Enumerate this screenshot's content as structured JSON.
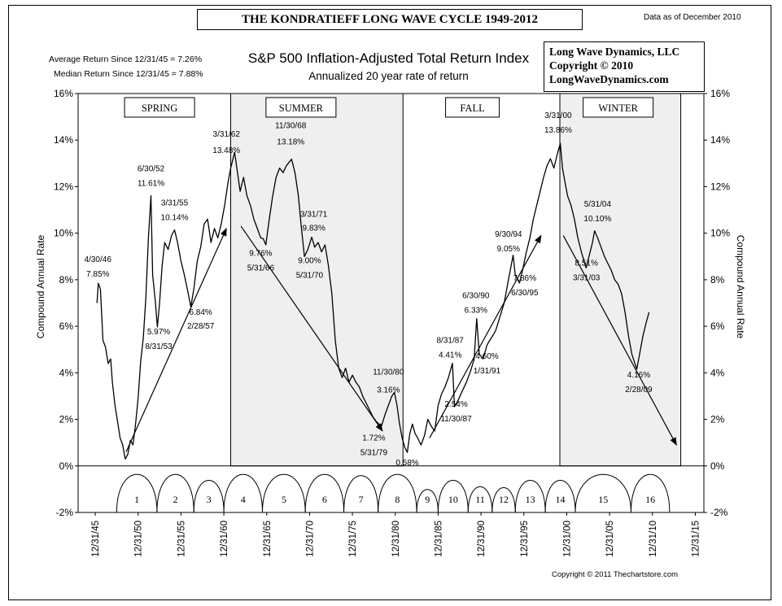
{
  "header": {
    "title": "THE KONDRATIEFF LONG WAVE CYCLE 1949-2012",
    "data_as_of": "Data as of December 2010",
    "average_return": "Average Return Since 12/31/45 = 7.26%",
    "median_return": "Median Return Since 12/31/45 = 7.88%"
  },
  "company_box": {
    "line1": "Long Wave Dynamics, LLC",
    "line2": "Copyright © 2010",
    "line3": "LongWaveDynamics.com"
  },
  "footer": {
    "copyright": "Copyright © 2011 Thechartstore.com"
  },
  "chart_data": {
    "type": "line",
    "title": "S&P 500 Inflation-Adjusted Total Return Index",
    "subtitle": "Annualized 20 year rate of return",
    "ylabel": "Compound Annual Rate",
    "ylabel_right": "Compound Annual Rate",
    "ylim": [
      -2,
      16
    ],
    "xlim": [
      1944,
      2017
    ],
    "y_ticks": [
      -2,
      0,
      2,
      4,
      6,
      8,
      10,
      12,
      14,
      16
    ],
    "y_tick_labels": [
      "-2%",
      "0%",
      "2%",
      "4%",
      "6%",
      "8%",
      "10%",
      "12%",
      "14%",
      "16%"
    ],
    "x_ticks": [
      1946,
      1951,
      1956,
      1961,
      1966,
      1971,
      1976,
      1981,
      1986,
      1991,
      1996,
      2001,
      2006,
      2011,
      2016
    ],
    "x_tick_labels": [
      "12/31/45",
      "12/31/50",
      "12/31/55",
      "12/31/60",
      "12/31/65",
      "12/31/70",
      "12/31/75",
      "12/31/80",
      "12/31/85",
      "12/31/90",
      "12/31/95",
      "12/31/00",
      "12/31/05",
      "12/31/10",
      "12/31/15"
    ],
    "seasons": [
      {
        "name": "SPRING",
        "start": 1944,
        "end": 1961.8,
        "shaded": false,
        "label_x": 1953.5
      },
      {
        "name": "SUMMER",
        "start": 1961.8,
        "end": 1981.9,
        "shaded": true,
        "label_x": 1970
      },
      {
        "name": "FALL",
        "start": 1981.9,
        "end": 2000.2,
        "shaded": false,
        "label_x": 1990
      },
      {
        "name": "WINTER",
        "start": 2000.2,
        "end": 2014.3,
        "shaded": true,
        "label_x": 2007
      }
    ],
    "cycles": [
      {
        "label": "1",
        "start": 1948.5,
        "end": 1953.2
      },
      {
        "label": "2",
        "start": 1953.2,
        "end": 1957.5
      },
      {
        "label": "3",
        "start": 1957.5,
        "end": 1961.0
      },
      {
        "label": "4",
        "start": 1961.0,
        "end": 1965.5
      },
      {
        "label": "5",
        "start": 1965.5,
        "end": 1970.5
      },
      {
        "label": "6",
        "start": 1970.5,
        "end": 1975.0
      },
      {
        "label": "7",
        "start": 1975.0,
        "end": 1979.0
      },
      {
        "label": "8",
        "start": 1979.0,
        "end": 1983.5
      },
      {
        "label": "9",
        "start": 1983.5,
        "end": 1986.0
      },
      {
        "label": "10",
        "start": 1986.0,
        "end": 1989.5
      },
      {
        "label": "11",
        "start": 1989.5,
        "end": 1992.3
      },
      {
        "label": "12",
        "start": 1992.3,
        "end": 1995.0
      },
      {
        "label": "13",
        "start": 1995.0,
        "end": 1998.5
      },
      {
        "label": "14",
        "start": 1998.5,
        "end": 2002.0
      },
      {
        "label": "15",
        "start": 2002.0,
        "end": 2008.5
      },
      {
        "label": "16",
        "start": 2008.5,
        "end": 2013.0
      }
    ],
    "series": [
      {
        "name": "S&P 500 20yr annualized real total return",
        "points": [
          [
            1946.2,
            7.0
          ],
          [
            1946.35,
            7.85
          ],
          [
            1946.6,
            7.6
          ],
          [
            1946.9,
            5.4
          ],
          [
            1947.2,
            5.1
          ],
          [
            1947.5,
            4.4
          ],
          [
            1947.8,
            4.6
          ],
          [
            1948.0,
            3.6
          ],
          [
            1948.3,
            2.6
          ],
          [
            1948.6,
            1.9
          ],
          [
            1948.9,
            1.2
          ],
          [
            1949.2,
            0.9
          ],
          [
            1949.5,
            0.3
          ],
          [
            1949.8,
            0.5
          ],
          [
            1950.1,
            1.1
          ],
          [
            1950.4,
            0.9
          ],
          [
            1950.7,
            1.8
          ],
          [
            1951.0,
            2.9
          ],
          [
            1951.3,
            4.5
          ],
          [
            1951.6,
            5.5
          ],
          [
            1951.9,
            7.2
          ],
          [
            1952.2,
            9.8
          ],
          [
            1952.5,
            11.61
          ],
          [
            1952.7,
            8.2
          ],
          [
            1953.0,
            7.1
          ],
          [
            1953.25,
            5.97
          ],
          [
            1953.5,
            7.0
          ],
          [
            1953.8,
            8.6
          ],
          [
            1954.1,
            9.6
          ],
          [
            1954.5,
            9.3
          ],
          [
            1954.9,
            9.9
          ],
          [
            1955.25,
            10.14
          ],
          [
            1955.6,
            9.6
          ],
          [
            1956.0,
            8.8
          ],
          [
            1956.4,
            8.2
          ],
          [
            1956.8,
            7.5
          ],
          [
            1957.15,
            6.84
          ],
          [
            1957.5,
            7.6
          ],
          [
            1957.9,
            8.8
          ],
          [
            1958.3,
            9.4
          ],
          [
            1958.7,
            10.4
          ],
          [
            1959.1,
            10.6
          ],
          [
            1959.5,
            9.6
          ],
          [
            1959.9,
            10.2
          ],
          [
            1960.3,
            9.8
          ],
          [
            1960.7,
            10.4
          ],
          [
            1961.1,
            11.2
          ],
          [
            1961.5,
            12.2
          ],
          [
            1961.8,
            12.8
          ],
          [
            1962.25,
            13.48
          ],
          [
            1962.6,
            12.6
          ],
          [
            1962.9,
            11.8
          ],
          [
            1963.3,
            12.4
          ],
          [
            1963.7,
            11.6
          ],
          [
            1964.1,
            11.2
          ],
          [
            1964.5,
            10.6
          ],
          [
            1964.9,
            10.2
          ],
          [
            1965.3,
            9.8
          ],
          [
            1965.6,
            9.76
          ],
          [
            1965.9,
            9.5
          ],
          [
            1966.3,
            10.6
          ],
          [
            1966.7,
            11.6
          ],
          [
            1967.1,
            12.4
          ],
          [
            1967.5,
            12.8
          ],
          [
            1967.9,
            12.6
          ],
          [
            1968.3,
            12.9
          ],
          [
            1968.9,
            13.18
          ],
          [
            1969.3,
            12.6
          ],
          [
            1969.7,
            11.6
          ],
          [
            1970.0,
            10.4
          ],
          [
            1970.4,
            9.0
          ],
          [
            1970.8,
            9.3
          ],
          [
            1971.25,
            9.83
          ],
          [
            1971.6,
            9.4
          ],
          [
            1972.0,
            9.6
          ],
          [
            1972.4,
            9.2
          ],
          [
            1972.8,
            9.5
          ],
          [
            1973.2,
            8.6
          ],
          [
            1973.6,
            7.4
          ],
          [
            1974.0,
            5.4
          ],
          [
            1974.4,
            4.2
          ],
          [
            1974.8,
            3.8
          ],
          [
            1975.2,
            4.2
          ],
          [
            1975.6,
            3.6
          ],
          [
            1976.0,
            3.9
          ],
          [
            1976.4,
            3.6
          ],
          [
            1976.8,
            3.4
          ],
          [
            1977.2,
            3.0
          ],
          [
            1977.6,
            2.7
          ],
          [
            1978.0,
            2.4
          ],
          [
            1978.4,
            2.1
          ],
          [
            1978.8,
            1.9
          ],
          [
            1979.1,
            1.8
          ],
          [
            1979.4,
            1.72
          ],
          [
            1979.8,
            2.2
          ],
          [
            1980.2,
            2.6
          ],
          [
            1980.6,
            3.0
          ],
          [
            1980.9,
            3.16
          ],
          [
            1981.2,
            2.6
          ],
          [
            1981.5,
            1.8
          ],
          [
            1981.8,
            1.2
          ],
          [
            1982.1,
            0.8
          ],
          [
            1982.4,
            0.58
          ],
          [
            1982.7,
            1.4
          ],
          [
            1983.0,
            1.8
          ],
          [
            1983.3,
            1.4
          ],
          [
            1983.6,
            1.2
          ],
          [
            1984.0,
            0.9
          ],
          [
            1984.4,
            1.3
          ],
          [
            1984.8,
            2.0
          ],
          [
            1985.2,
            1.7
          ],
          [
            1985.6,
            1.5
          ],
          [
            1986.0,
            2.6
          ],
          [
            1986.4,
            3.1
          ],
          [
            1986.8,
            3.4
          ],
          [
            1987.2,
            3.8
          ],
          [
            1987.67,
            4.41
          ],
          [
            1987.9,
            2.54
          ],
          [
            1988.3,
            2.8
          ],
          [
            1988.8,
            3.2
          ],
          [
            1989.3,
            3.6
          ],
          [
            1989.8,
            4.1
          ],
          [
            1990.2,
            4.6
          ],
          [
            1990.5,
            6.33
          ],
          [
            1990.8,
            4.8
          ],
          [
            1991.25,
            4.6
          ],
          [
            1991.7,
            5.2
          ],
          [
            1992.2,
            5.5
          ],
          [
            1992.7,
            5.8
          ],
          [
            1993.2,
            6.4
          ],
          [
            1993.7,
            7.0
          ],
          [
            1994.2,
            8.0
          ],
          [
            1994.75,
            9.05
          ],
          [
            1995.0,
            8.2
          ],
          [
            1995.5,
            7.86
          ],
          [
            1995.9,
            8.5
          ],
          [
            1996.3,
            9.2
          ],
          [
            1996.7,
            9.8
          ],
          [
            1997.1,
            10.6
          ],
          [
            1997.5,
            11.2
          ],
          [
            1997.9,
            11.8
          ],
          [
            1998.3,
            12.4
          ],
          [
            1998.7,
            12.9
          ],
          [
            1999.1,
            13.2
          ],
          [
            1999.5,
            12.8
          ],
          [
            1999.9,
            13.4
          ],
          [
            2000.25,
            13.86
          ],
          [
            2000.5,
            12.8
          ],
          [
            2000.8,
            12.2
          ],
          [
            2001.1,
            11.6
          ],
          [
            2001.5,
            11.2
          ],
          [
            2001.9,
            10.6
          ],
          [
            2002.3,
            9.8
          ],
          [
            2002.7,
            9.2
          ],
          [
            2003.25,
            8.51
          ],
          [
            2003.6,
            9.0
          ],
          [
            2004.0,
            9.6
          ],
          [
            2004.25,
            10.1
          ],
          [
            2004.6,
            9.8
          ],
          [
            2005.0,
            9.4
          ],
          [
            2005.4,
            9.0
          ],
          [
            2005.8,
            8.7
          ],
          [
            2006.2,
            8.4
          ],
          [
            2006.6,
            8.0
          ],
          [
            2007.0,
            7.8
          ],
          [
            2007.4,
            7.4
          ],
          [
            2007.8,
            6.6
          ],
          [
            2008.2,
            5.6
          ],
          [
            2008.6,
            4.8
          ],
          [
            2009.17,
            4.16
          ],
          [
            2009.5,
            4.8
          ],
          [
            2009.9,
            5.6
          ],
          [
            2010.3,
            6.2
          ],
          [
            2010.6,
            6.6
          ]
        ]
      }
    ],
    "trend_arrows": [
      {
        "from": [
          1949.6,
          0.6
        ],
        "to": [
          1961.3,
          10.2
        ]
      },
      {
        "from": [
          1963.0,
          10.3
        ],
        "to": [
          1979.5,
          1.5
        ]
      },
      {
        "from": [
          1985.0,
          1.2
        ],
        "to": [
          1998.0,
          9.9
        ]
      },
      {
        "from": [
          2000.6,
          9.9
        ],
        "to": [
          2013.8,
          0.9
        ]
      }
    ],
    "annotations": [
      {
        "date": "4/30/46",
        "value": "7.85%",
        "x": 1946.3,
        "y": 7.85,
        "anchor": "middle",
        "date_dy": -26,
        "val_dy": -8
      },
      {
        "date": "6/30/52",
        "value": "11.61%",
        "x": 1952.5,
        "y": 11.61,
        "anchor": "middle",
        "date_dy": -30,
        "val_dy": -12
      },
      {
        "date": "3/31/55",
        "value": "10.14%",
        "x": 1955.25,
        "y": 10.14,
        "anchor": "middle",
        "date_dy": -30,
        "val_dy": -12
      },
      {
        "date": "8/31/53",
        "value": "5.97%",
        "x": 1953.4,
        "y": 5.97,
        "anchor": "middle",
        "date_dy": 27,
        "val_dy": 9
      },
      {
        "date": "2/28/57",
        "value": "6.84%",
        "x": 1958.3,
        "y": 6.84,
        "anchor": "middle",
        "date_dy": 27,
        "val_dy": 10
      },
      {
        "date": "3/31/62",
        "value": "13.48%",
        "x": 1961.3,
        "y": 13.48,
        "anchor": "middle",
        "date_dy": -19,
        "val_dy": 1
      },
      {
        "date": "11/30/68",
        "value": "13.18%",
        "x": 1968.8,
        "y": 13.18,
        "anchor": "middle",
        "date_dy": -38,
        "val_dy": -18
      },
      {
        "date": "3/31/71",
        "value": "9.83%",
        "x": 1971.5,
        "y": 9.83,
        "anchor": "middle",
        "date_dy": -25,
        "val_dy": -8
      },
      {
        "date": "5/31/66",
        "value": "9.76%",
        "x": 1965.3,
        "y": 9.76,
        "anchor": "middle",
        "date_dy": 39,
        "val_dy": 21
      },
      {
        "date": "5/31/70",
        "value": "9.00%",
        "x": 1971.0,
        "y": 9.0,
        "anchor": "middle",
        "date_dy": 26,
        "val_dy": 8
      },
      {
        "date": "11/30/80",
        "value": "3.16%",
        "x": 1980.2,
        "y": 3.16,
        "anchor": "middle",
        "date_dy": -22,
        "val_dy": 0
      },
      {
        "date": "5/31/79",
        "value": "1.72%",
        "x": 1978.5,
        "y": 1.72,
        "anchor": "middle",
        "date_dy": 36,
        "val_dy": 18
      },
      {
        "date": "",
        "value": "0.58%",
        "x": 1982.4,
        "y": 0.58,
        "anchor": "middle",
        "date_dy": 0,
        "val_dy": 16
      },
      {
        "date": "8/31/87",
        "value": "4.41%",
        "x": 1987.4,
        "y": 4.41,
        "anchor": "middle",
        "date_dy": -25,
        "val_dy": -7
      },
      {
        "date": "11/30/87",
        "value": "2.54%",
        "x": 1988.1,
        "y": 2.54,
        "anchor": "middle",
        "date_dy": 18,
        "val_dy": 0
      },
      {
        "date": "6/30/90",
        "value": "6.33%",
        "x": 1990.4,
        "y": 6.33,
        "anchor": "middle",
        "date_dy": -25,
        "val_dy": -7
      },
      {
        "date": "1/31/91",
        "value": "4.60%",
        "x": 1991.7,
        "y": 4.6,
        "anchor": "middle",
        "date_dy": 18,
        "val_dy": 0
      },
      {
        "date": "9/30/94",
        "value": "9.05%",
        "x": 1994.2,
        "y": 9.05,
        "anchor": "middle",
        "date_dy": -23,
        "val_dy": -5
      },
      {
        "date": "6/30/95",
        "value": "7.86%",
        "x": 1996.1,
        "y": 7.86,
        "anchor": "middle",
        "date_dy": 15,
        "val_dy": -3
      },
      {
        "date": "3/31/00",
        "value": "13.86%",
        "x": 2000.0,
        "y": 13.86,
        "anchor": "middle",
        "date_dy": -31,
        "val_dy": -13
      },
      {
        "date": "5/31/04",
        "value": "10.10%",
        "x": 2004.6,
        "y": 10.1,
        "anchor": "middle",
        "date_dy": -30,
        "val_dy": -12
      },
      {
        "date": "3/31/03",
        "value": "8.51%",
        "x": 2003.3,
        "y": 8.51,
        "anchor": "middle",
        "date_dy": 15,
        "val_dy": -3
      },
      {
        "date": "2/28/09",
        "value": "4.16%",
        "x": 2009.4,
        "y": 4.16,
        "anchor": "middle",
        "date_dy": 28,
        "val_dy": 10
      }
    ]
  }
}
